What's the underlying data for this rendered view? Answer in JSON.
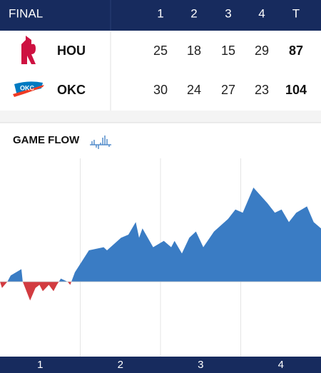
{
  "header": {
    "status": "FINAL",
    "columns": [
      "1",
      "2",
      "3",
      "4",
      "T"
    ]
  },
  "teams": [
    {
      "abbr": "HOU",
      "scores": [
        25,
        18,
        15,
        29
      ],
      "total": 87
    },
    {
      "abbr": "OKC",
      "scores": [
        30,
        24,
        27,
        23
      ],
      "total": 104
    }
  ],
  "game_flow": {
    "title": "GAME FLOW",
    "type": "area",
    "quarters": [
      "1",
      "2",
      "3",
      "4"
    ],
    "xlim": [
      0,
      48
    ],
    "x": [
      0,
      0.3,
      1.1,
      1.6,
      3.2,
      3.4,
      4.5,
      5.3,
      5.9,
      6.4,
      7.3,
      8,
      8.5,
      9.1,
      10.1,
      10.5,
      11.2,
      13.3,
      15.5,
      16,
      18.1,
      19.2,
      20.3,
      20.8,
      21.3,
      22.9,
      24.5,
      25.6,
      26.1,
      27.2,
      28.3,
      29.3,
      30.4,
      32,
      34.1,
      35.2,
      36.3,
      37.9,
      40,
      41.1,
      42.1,
      43.2,
      44.3,
      45.9,
      46.9,
      48
    ],
    "values": [
      0,
      -2,
      0,
      2,
      4,
      0,
      -6,
      -2,
      -1,
      -3,
      -1,
      -3,
      -1,
      1,
      0,
      -1,
      3,
      10,
      11,
      10,
      14,
      15,
      19,
      14,
      17,
      11,
      13,
      11,
      13,
      9,
      14,
      16,
      11,
      16,
      20,
      23,
      22,
      30,
      25,
      22,
      23,
      19,
      22,
      24,
      19,
      17
    ],
    "colors": {
      "lead": "#3a7cc4",
      "trail": "#d23b40"
    }
  }
}
